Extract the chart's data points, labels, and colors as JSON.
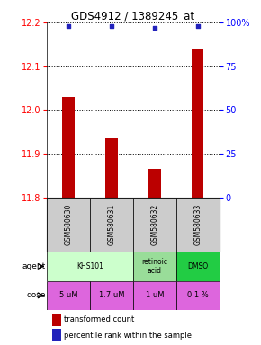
{
  "title": "GDS4912 / 1389245_at",
  "samples": [
    "GSM580630",
    "GSM580631",
    "GSM580632",
    "GSM580633"
  ],
  "bar_values": [
    12.03,
    11.935,
    11.865,
    12.14
  ],
  "bar_color": "#bb0000",
  "dot_values": [
    98,
    98,
    97,
    98
  ],
  "dot_color": "#2222bb",
  "ylim_left": [
    11.8,
    12.2
  ],
  "yticks_left": [
    11.8,
    11.9,
    12.0,
    12.1,
    12.2
  ],
  "ylim_right": [
    0,
    100
  ],
  "yticks_right": [
    0,
    25,
    50,
    75,
    100
  ],
  "yticklabels_right": [
    "0",
    "25",
    "50",
    "75",
    "100%"
  ],
  "agent_info": [
    {
      "c0": 0,
      "c1": 1,
      "label": "KHS101",
      "color": "#ccffcc"
    },
    {
      "c0": 2,
      "c1": 2,
      "label": "retinoic\nacid",
      "color": "#99dd99"
    },
    {
      "c0": 3,
      "c1": 3,
      "label": "DMSO",
      "color": "#22cc44"
    }
  ],
  "dose_labels": [
    "5 uM",
    "1.7 uM",
    "1 uM",
    "0.1 %"
  ],
  "dose_color": "#dd66dd",
  "sample_bg": "#cccccc",
  "legend_bar_color": "#bb0000",
  "legend_dot_color": "#2222bb",
  "legend_bar_label": "transformed count",
  "legend_dot_label": "percentile rank within the sample"
}
